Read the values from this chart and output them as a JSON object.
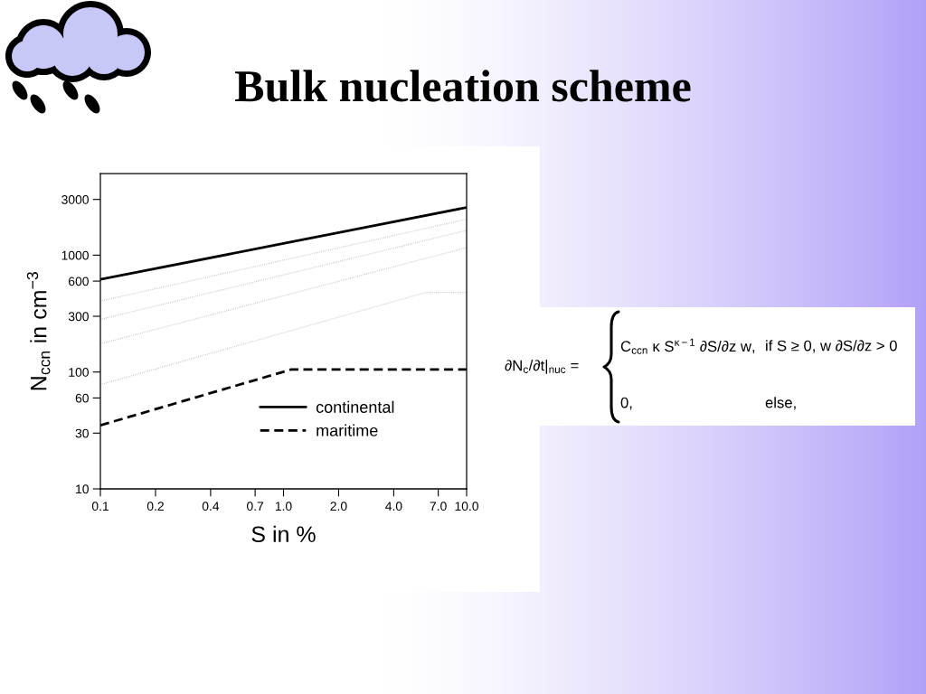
{
  "chart_data": {
    "type": "line",
    "title": "Bulk nucleation scheme",
    "xlabel": "S in %",
    "ylabel": "N$_{ccn}$ in cm$^{−3}$",
    "log": "xy",
    "xlim": [
      0.1,
      10
    ],
    "ylim": [
      10,
      5000
    ],
    "xticks": [
      0.1,
      0.2,
      0.4,
      0.7,
      {
        "value": 1,
        "label": "1.0"
      },
      {
        "value": 2,
        "label": "2.0"
      },
      {
        "value": 4,
        "label": "4.0"
      },
      {
        "value": 7,
        "label": "7.0"
      },
      {
        "value": 10,
        "label": "10.0"
      }
    ],
    "yticks": [
      10,
      30,
      60,
      100,
      300,
      600,
      1000,
      3000
    ],
    "legend": "bottom",
    "series": [
      {
        "color": "#c8c8c8",
        "line_style": "dotted",
        "x": [
          0.1,
          10
        ],
        "values": [
          405,
          2030
        ]
      },
      {
        "color": "#c8c8c8",
        "line_style": "dotted",
        "x": [
          0.1,
          10
        ],
        "values": [
          282,
          1630
        ]
      },
      {
        "color": "#c8c8c8",
        "line_style": "dotted",
        "x": [
          0.1,
          10
        ],
        "values": [
          174,
          1160
        ]
      },
      {
        "color": "#c8c8c8",
        "line_style": "dotted",
        "x": [
          0.1,
          6,
          10
        ],
        "values": [
          78,
          480,
          480
        ]
      },
      {
        "name": "continental",
        "color": "#000000",
        "line_style": "solid",
        "x": [
          0.1,
          1,
          10
        ],
        "values": [
          620,
          1260,
          2560
        ]
      },
      {
        "name": "maritime",
        "color": "#000000",
        "line_style": "dashed",
        "x": [
          0.1,
          1.1,
          10
        ],
        "values": [
          35,
          105,
          105
        ]
      }
    ],
    "annotations": [
      "∂N$_{c}$/∂t|$_{nuc}$ =",
      "C$_{ccn}$ κ S$^{κ−1}$ ∂S/∂z w,",
      "if S ≥ 0, w ∂S/∂z > 0",
      "0,",
      "else,"
    ]
  }
}
